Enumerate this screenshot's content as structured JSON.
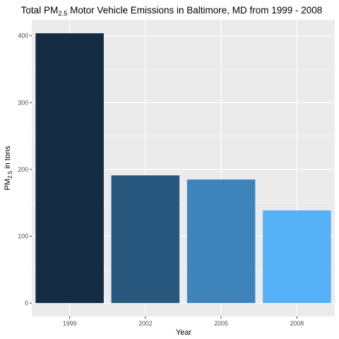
{
  "chart_data": {
    "type": "bar",
    "title": {
      "prefix": "Total PM",
      "subscript": "2.5",
      "suffix": " Motor Vehicle Emissions in Baltimore, MD from 1999 - 2008"
    },
    "xlabel": "Year",
    "ylabel": {
      "prefix": "PM",
      "subscript": "2.5",
      "suffix": " in tons"
    },
    "categories": [
      "1999",
      "2002",
      "2005",
      "2008"
    ],
    "values": [
      403.8,
      191.1,
      184.9,
      138.6
    ],
    "colors": [
      "#132b43",
      "#29587e",
      "#3e84bb",
      "#56b1f7"
    ],
    "ylim": [
      -20,
      424
    ],
    "yticks": [
      0,
      100,
      200,
      300,
      400
    ],
    "panel_background": "#ebebeb",
    "grid": true,
    "legend": "none"
  }
}
